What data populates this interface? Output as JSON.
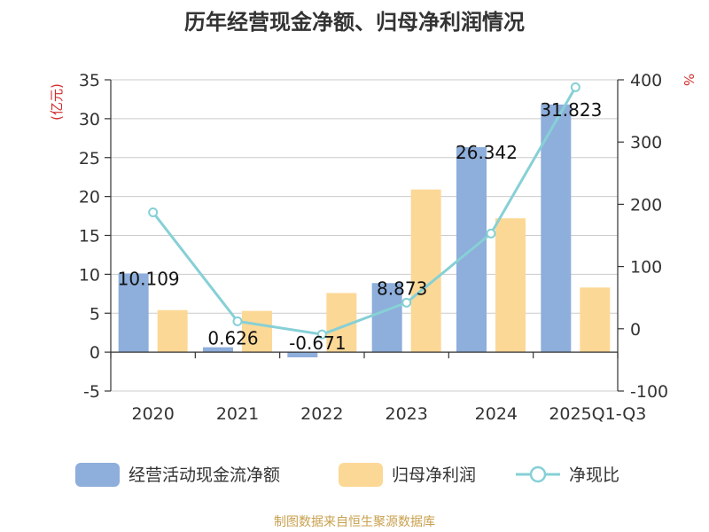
{
  "chart_data": {
    "type": "bar",
    "title": "历年经营现金净额、归母净利润情况",
    "categories": [
      "2020",
      "2021",
      "2022",
      "2023",
      "2024",
      "2025Q1-Q3"
    ],
    "y_left": {
      "unit": "(亿元)",
      "ylim": [
        -5,
        35
      ],
      "ticks": [
        -5,
        0,
        5,
        10,
        15,
        20,
        25,
        30,
        35
      ]
    },
    "y_right": {
      "unit": "%",
      "ylim": [
        -100,
        400
      ],
      "ticks": [
        -100,
        0,
        100,
        200,
        300,
        400
      ]
    },
    "grid": true,
    "legend_position": "bottom",
    "series": [
      {
        "name": "经营活动现金流净额",
        "type": "bar",
        "axis": "left",
        "color": "#8eaedb",
        "values": [
          10.109,
          0.626,
          -0.671,
          8.873,
          26.342,
          31.823
        ],
        "labels": [
          "10.109",
          "0.626",
          "-0.671",
          "8.873",
          "26.342",
          "31.823"
        ]
      },
      {
        "name": "归母净利润",
        "type": "bar",
        "axis": "left",
        "color": "#fcd896",
        "values": [
          5.4,
          5.3,
          7.6,
          20.9,
          17.2,
          8.3
        ]
      },
      {
        "name": "净现比",
        "type": "line",
        "axis": "right",
        "color": "#86d0d6",
        "values": [
          187,
          12,
          -9,
          42,
          153,
          388
        ]
      }
    ]
  },
  "source": {
    "text": "制图数据来自恒生聚源数据库",
    "color": "#c8a04e"
  },
  "colors": {
    "axis": "#333333",
    "grid": "#cccccc",
    "unit_left": "#d12c2c",
    "unit_right": "#d12c2c"
  }
}
